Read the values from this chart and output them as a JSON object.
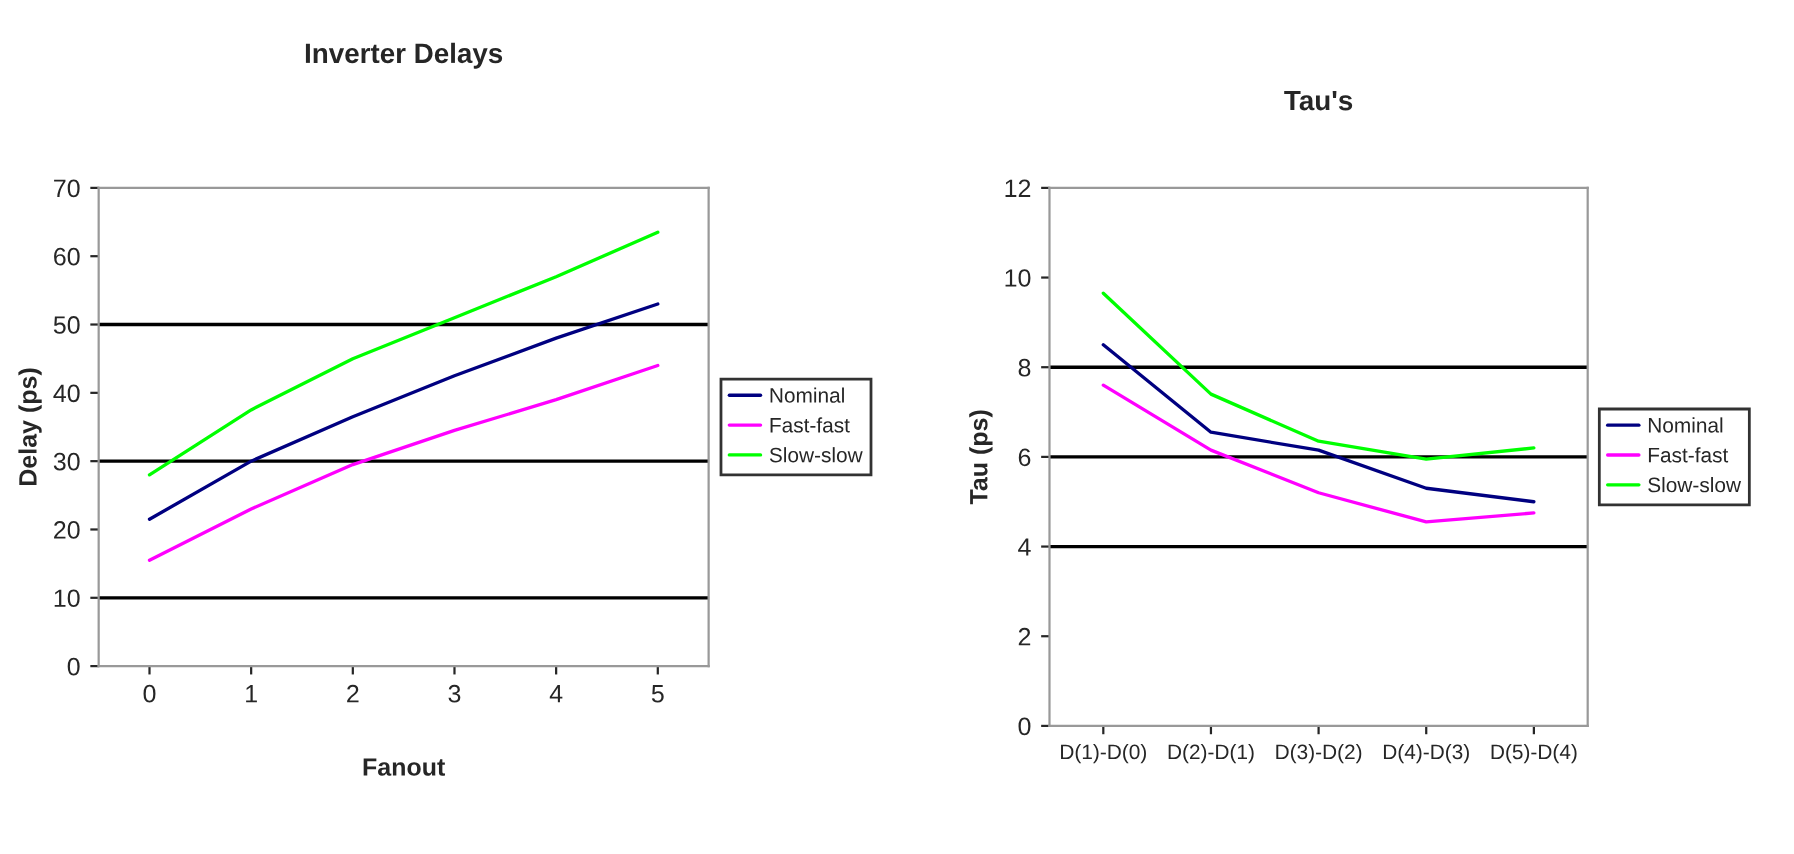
{
  "chart_data": [
    {
      "type": "line",
      "title": "Inverter Delays",
      "xlabel": "Fanout",
      "ylabel": "Delay (ps)",
      "categories": [
        "0",
        "1",
        "2",
        "3",
        "4",
        "5"
      ],
      "series": [
        {
          "name": "Nominal",
          "color": "#000080",
          "values": [
            21.5,
            30,
            36.5,
            42.5,
            48,
            53
          ]
        },
        {
          "name": "Fast-fast",
          "color": "#ff00ff",
          "values": [
            15.5,
            23,
            29.5,
            34.5,
            39,
            44
          ]
        },
        {
          "name": "Slow-slow",
          "color": "#00ff00",
          "values": [
            28,
            37.5,
            45,
            51,
            57,
            63.5
          ]
        }
      ],
      "ylim": [
        0,
        70
      ],
      "yticks": [
        0,
        10,
        20,
        30,
        40,
        50,
        60,
        70
      ],
      "ref_lines": [
        {
          "axis": "y",
          "value": 10,
          "color": "#000000"
        },
        {
          "axis": "y",
          "value": 30,
          "color": "#000000"
        },
        {
          "axis": "y",
          "value": 50,
          "color": "#000000"
        }
      ],
      "legend": "right",
      "marker": "none",
      "line_style": "solid"
    },
    {
      "type": "line",
      "title": "Tau's",
      "ylabel": "Tau (ps)",
      "categories": [
        "D(1)-D(0)",
        "D(2)-D(1)",
        "D(3)-D(2)",
        "D(4)-D(3)",
        "D(5)-D(4)"
      ],
      "series": [
        {
          "name": "Nominal",
          "color": "#000080",
          "values": [
            8.5,
            6.55,
            6.15,
            5.3,
            5.0
          ]
        },
        {
          "name": "Fast-fast",
          "color": "#ff00ff",
          "values": [
            7.6,
            6.15,
            5.2,
            4.55,
            4.75
          ]
        },
        {
          "name": "Slow-slow",
          "color": "#00ff00",
          "values": [
            9.65,
            7.4,
            6.35,
            5.95,
            6.2
          ]
        }
      ],
      "ylim": [
        0,
        12
      ],
      "yticks": [
        0,
        2,
        4,
        6,
        8,
        10,
        12
      ],
      "ref_lines": [
        {
          "axis": "y",
          "value": 4,
          "color": "#000000"
        },
        {
          "axis": "y",
          "value": 6,
          "color": "#000000"
        },
        {
          "axis": "y",
          "value": 8,
          "color": "#000000"
        }
      ],
      "legend": "right",
      "marker": "none",
      "line_style": "solid"
    }
  ]
}
